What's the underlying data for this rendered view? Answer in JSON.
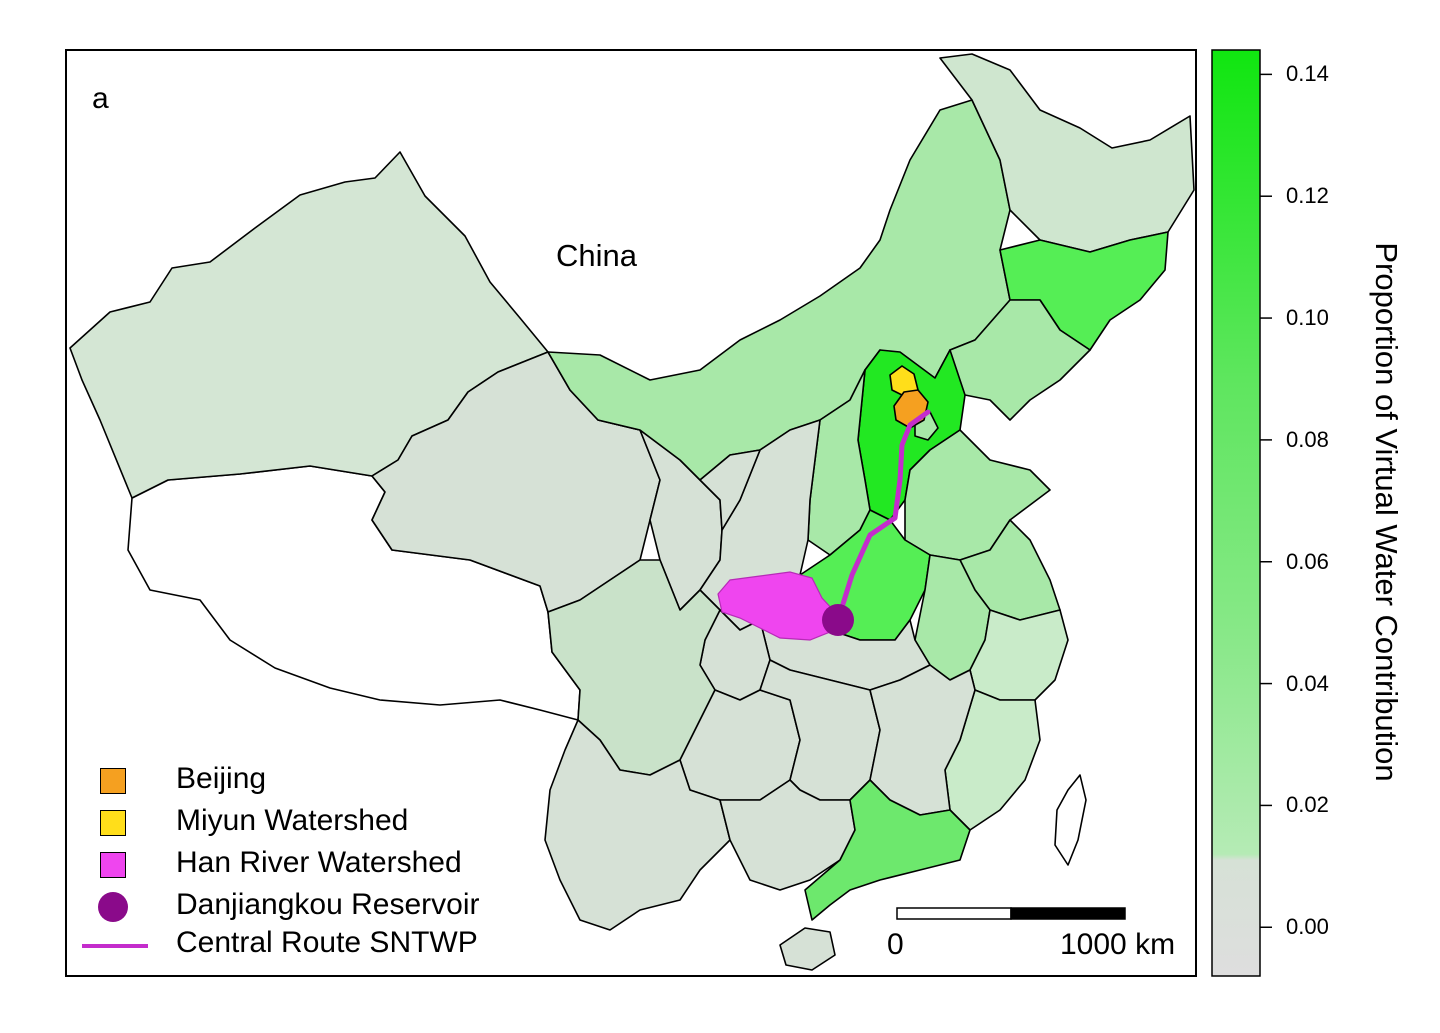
{
  "panel_letter": "a",
  "country_label": "China",
  "colors": {
    "province_zero": "#d6e1d6",
    "province_low": "#c9ebc9",
    "province_mid": "#9ee89e",
    "province_high": "#5af05a",
    "province_max": "#22e822",
    "beijing": "#f5a020",
    "miyun": "#ffde1a",
    "han_river": "#ef45ef",
    "reservoir": "#8a0a8a",
    "route": "#c42ccc",
    "outside": "#ffffff"
  },
  "legend": {
    "items": [
      {
        "label": "Beijing",
        "symbol": "square",
        "color": "#f5a020"
      },
      {
        "label": "Miyun Watershed",
        "symbol": "square",
        "color": "#ffde1a"
      },
      {
        "label": "Han River Watershed",
        "symbol": "square",
        "color": "#ef45ef"
      },
      {
        "label": "Danjiangkou Reservoir",
        "symbol": "circle",
        "color": "#8a0a8a"
      },
      {
        "label": "Central Route SNTWP",
        "symbol": "line",
        "color": "#c42ccc"
      }
    ]
  },
  "scale_bar": {
    "start_label": "0",
    "end_label": "1000 km"
  },
  "colorbar": {
    "title": "Proportion of Virtual Water Contribution",
    "ticks": [
      "0.00",
      "0.02",
      "0.04",
      "0.06",
      "0.08",
      "0.10",
      "0.12",
      "0.14"
    ],
    "tick_values": [
      0.0,
      0.02,
      0.04,
      0.06,
      0.08,
      0.1,
      0.12,
      0.14
    ],
    "range": [
      -0.008,
      0.144
    ],
    "gradient_stops": [
      {
        "value": -0.008,
        "color": "#dedede"
      },
      {
        "value": 0.011,
        "color": "#d6e1d6"
      },
      {
        "value": 0.012,
        "color": "#b5ebb5"
      },
      {
        "value": 0.05,
        "color": "#86e886"
      },
      {
        "value": 0.09,
        "color": "#5ee65e"
      },
      {
        "value": 0.144,
        "color": "#10e610"
      }
    ]
  }
}
